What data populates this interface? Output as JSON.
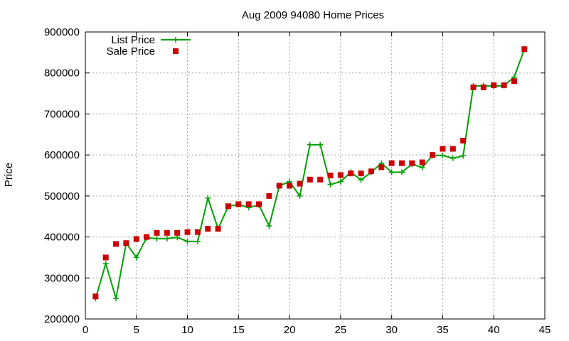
{
  "chart_data": {
    "type": "line",
    "title": "Aug 2009 94080 Home Prices",
    "xlabel": "",
    "ylabel": "Price",
    "xlim": [
      0,
      45
    ],
    "ylim": [
      200000,
      900000
    ],
    "x_ticks": [
      0,
      5,
      10,
      15,
      20,
      25,
      30,
      35,
      40,
      45
    ],
    "x_tick_labels": [
      "0",
      "5",
      "10",
      "15",
      "20",
      "25",
      "30",
      "35",
      "40",
      "45"
    ],
    "y_ticks": [
      200000,
      300000,
      400000,
      500000,
      600000,
      700000,
      800000,
      900000
    ],
    "y_tick_labels": [
      "200000",
      "300000",
      "400000",
      "500000",
      "600000",
      "700000",
      "800000",
      "900000"
    ],
    "grid": true,
    "legend_position": "top-left",
    "x": [
      1,
      2,
      3,
      4,
      5,
      6,
      7,
      8,
      9,
      10,
      11,
      12,
      13,
      14,
      15,
      16,
      17,
      18,
      19,
      20,
      21,
      22,
      23,
      24,
      25,
      26,
      27,
      28,
      29,
      30,
      31,
      32,
      33,
      34,
      35,
      36,
      37,
      38,
      39,
      40,
      41,
      42,
      43
    ],
    "series": [
      {
        "name": "List Price",
        "style": "line-plus",
        "color": "#00a000",
        "values": [
          250000,
          335000,
          250000,
          385000,
          350000,
          398000,
          396000,
          396000,
          399000,
          389000,
          389000,
          495000,
          420000,
          475000,
          479000,
          472000,
          478000,
          427000,
          525000,
          535000,
          500000,
          625000,
          625000,
          528000,
          535000,
          558000,
          539000,
          558000,
          580000,
          558000,
          558000,
          578000,
          569000,
          599000,
          599000,
          592000,
          598000,
          768000,
          769000,
          768000,
          769000,
          790000,
          858000
        ]
      },
      {
        "name": "Sale Price",
        "style": "square-markers",
        "color": "#cc0000",
        "values": [
          255000,
          350000,
          383000,
          385000,
          395000,
          400000,
          410000,
          410000,
          410000,
          412000,
          412000,
          420000,
          420000,
          475000,
          480000,
          480000,
          480000,
          500000,
          525000,
          525000,
          530000,
          540000,
          540000,
          550000,
          551000,
          555000,
          555000,
          560000,
          570000,
          580000,
          580000,
          580000,
          582000,
          600000,
          615000,
          615000,
          635000,
          765000,
          765000,
          770000,
          770000,
          780000,
          858000
        ]
      }
    ]
  }
}
